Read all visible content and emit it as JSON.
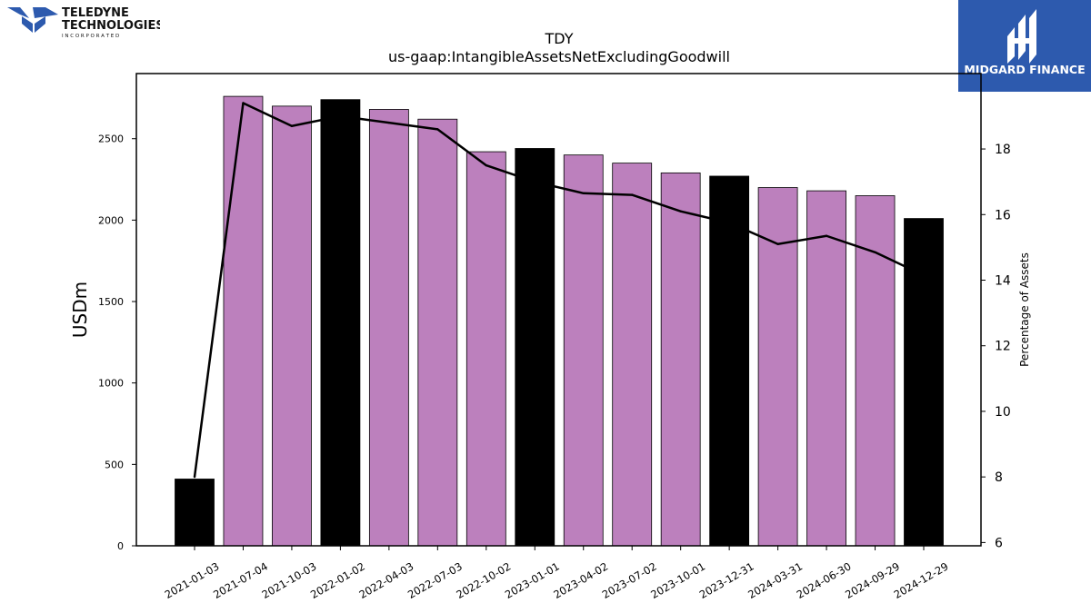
{
  "logos": {
    "left": {
      "line1": "TELEDYNE",
      "line2": "TECHNOLOGIES",
      "line3": "I N C O R P O R A T E D"
    },
    "right": {
      "text": "MIDGARD FINANCE"
    }
  },
  "colors": {
    "bar_default": "#bc80bd",
    "bar_highlight": "#000000",
    "line": "#000000",
    "brand_blue": "#2d5aae"
  },
  "chart_data": {
    "type": "bar",
    "title": "TDY",
    "subtitle": "us-gaap:IntangibleAssetsNetExcludingGoodwill",
    "ylabel": "USDm",
    "y2label": "Percentage of Assets",
    "ylim": [
      0,
      2900
    ],
    "y2lim": [
      5.9,
      20.3
    ],
    "yticks": [
      0,
      500,
      1000,
      1500,
      2000,
      2500
    ],
    "y2ticks": [
      6,
      8,
      10,
      12,
      14,
      16,
      18
    ],
    "categories": [
      "2021-01-03",
      "2021-07-04",
      "2021-10-03",
      "2022-01-02",
      "2022-04-03",
      "2022-07-03",
      "2022-10-02",
      "2023-01-01",
      "2023-04-02",
      "2023-07-02",
      "2023-10-01",
      "2023-12-31",
      "2024-03-31",
      "2024-06-30",
      "2024-09-29",
      "2024-12-29"
    ],
    "series": [
      {
        "type": "bar",
        "values": [
          410,
          2760,
          2700,
          2740,
          2680,
          2620,
          2420,
          2440,
          2400,
          2350,
          2290,
          2270,
          2200,
          2180,
          2150,
          2010
        ],
        "highlight": [
          true,
          false,
          false,
          true,
          false,
          false,
          false,
          true,
          false,
          false,
          false,
          true,
          false,
          false,
          false,
          true
        ]
      },
      {
        "type": "line",
        "axis": "right",
        "values": [
          8.0,
          19.4,
          18.7,
          19.0,
          18.8,
          18.6,
          17.5,
          17.0,
          16.65,
          16.6,
          16.1,
          15.75,
          15.1,
          15.35,
          14.85,
          14.15
        ]
      }
    ],
    "grid": false
  }
}
